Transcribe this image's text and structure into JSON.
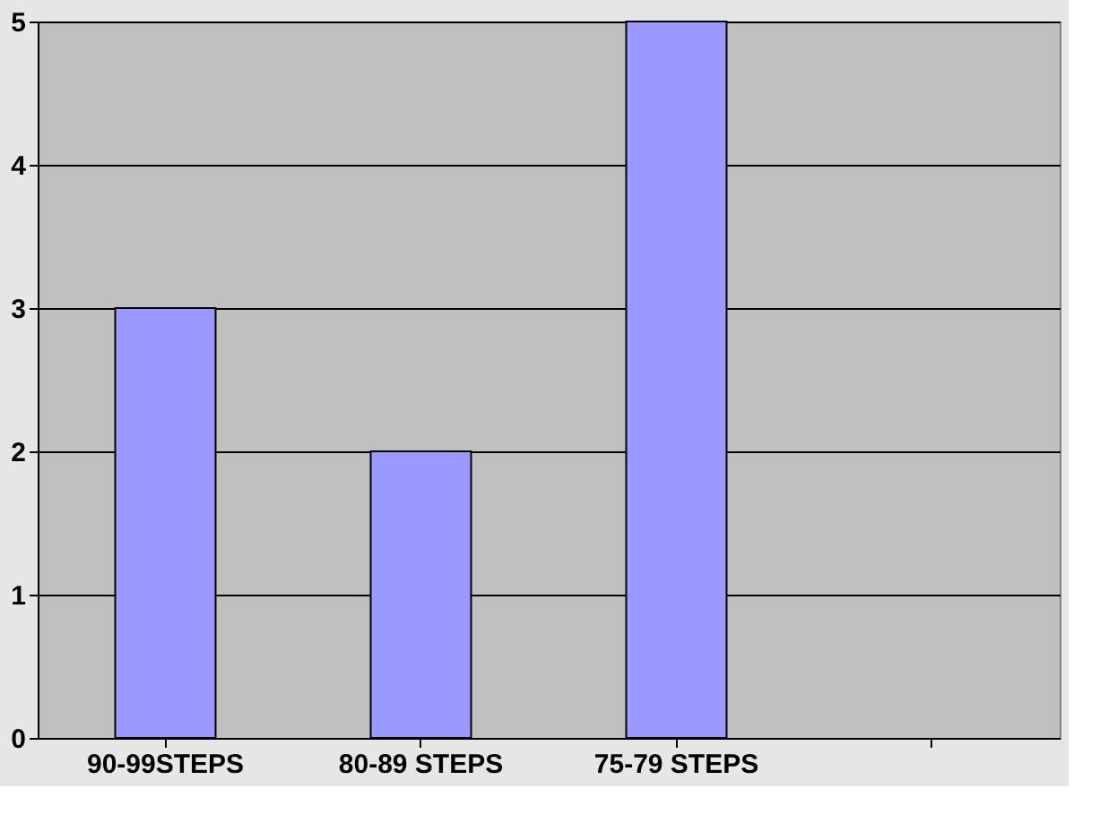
{
  "chart_data": {
    "type": "bar",
    "categories": [
      "90-99STEPS",
      "80-89 STEPS",
      "75-79 STEPS",
      null
    ],
    "values": [
      3,
      2,
      5,
      null
    ],
    "color": "#9999ff",
    "ylim": [
      0,
      5
    ],
    "yticks": [
      0,
      1,
      2,
      3,
      4,
      5
    ],
    "grid": "y"
  }
}
